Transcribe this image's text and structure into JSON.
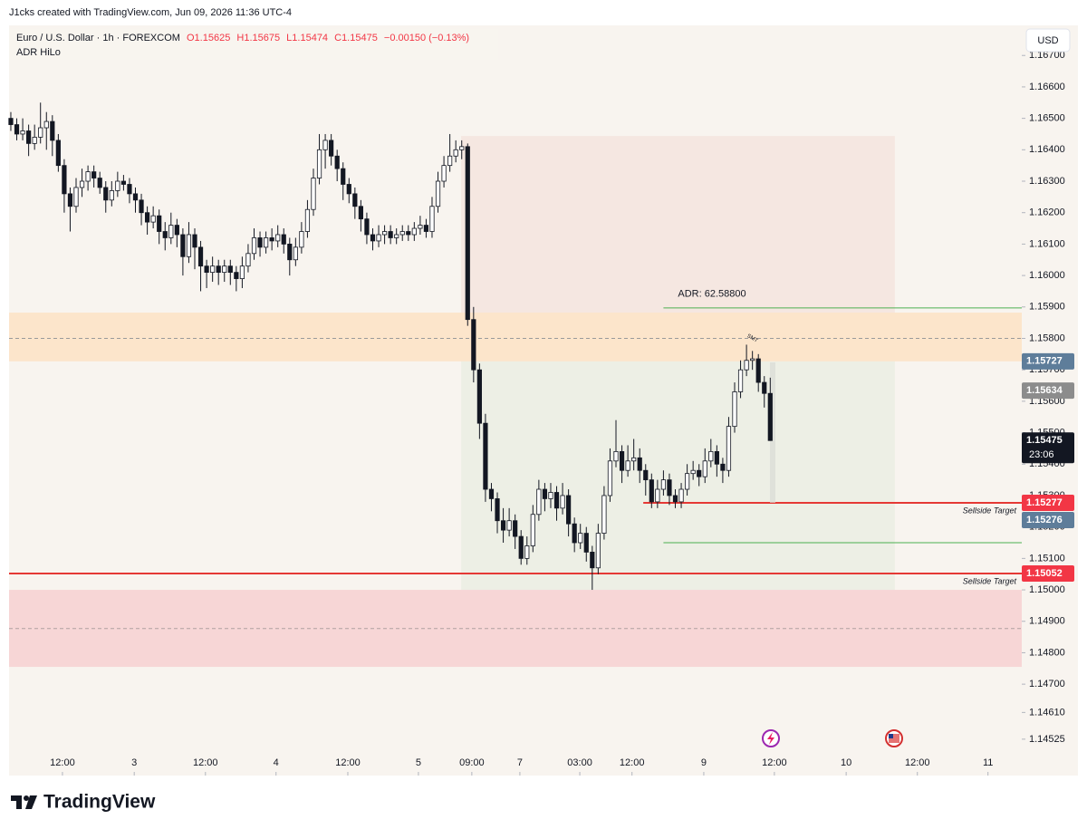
{
  "header": {
    "credit": "J1cks created with TradingView.com, Jun 09, 2026 11:36 UTC-4",
    "symbol": "Euro / U.S. Dollar · 1h · FOREXCOM",
    "open": "O1.15625",
    "high": "H1.15675",
    "low": "L1.15474",
    "close": "C1.15475",
    "change": "−0.00150 (−0.13%)",
    "indicator": "ADR HiLo",
    "currency": "USD"
  },
  "chart_data": {
    "type": "candlestick",
    "up_color": "#ffffff",
    "down_color": "#131722",
    "wick_color": "#131722",
    "ylim": [
      1.1449,
      1.1679
    ],
    "xlim": [
      -0.3,
      170.4
    ],
    "grid": false,
    "yticks": [
      {
        "value": 1.167,
        "label": "1.16700"
      },
      {
        "value": 1.166,
        "label": "1.16600"
      },
      {
        "value": 1.165,
        "label": "1.16500"
      },
      {
        "value": 1.164,
        "label": "1.16400"
      },
      {
        "value": 1.163,
        "label": "1.16300"
      },
      {
        "value": 1.162,
        "label": "1.16200"
      },
      {
        "value": 1.161,
        "label": "1.16100"
      },
      {
        "value": 1.16,
        "label": "1.16000"
      },
      {
        "value": 1.159,
        "label": "1.15900"
      },
      {
        "value": 1.158,
        "label": "1.15800"
      },
      {
        "value": 1.157,
        "label": "1.15700"
      },
      {
        "value": 1.156,
        "label": "1.15600"
      },
      {
        "value": 1.155,
        "label": "1.15500"
      },
      {
        "value": 1.154,
        "label": "1.15400"
      },
      {
        "value": 1.153,
        "label": "1.15300"
      },
      {
        "value": 1.152,
        "label": "1.15200"
      },
      {
        "value": 1.151,
        "label": "1.15100"
      },
      {
        "value": 1.15,
        "label": "1.15000"
      },
      {
        "value": 1.149,
        "label": "1.14900"
      },
      {
        "value": 1.148,
        "label": "1.14800"
      },
      {
        "value": 1.147,
        "label": "1.14700"
      },
      {
        "value": 1.1461,
        "label": "1.14610"
      },
      {
        "value": 1.14525,
        "label": "1.14525"
      }
    ],
    "xticks": [
      {
        "value": 8.7,
        "label": "12:00"
      },
      {
        "value": 20.8,
        "label": "3"
      },
      {
        "value": 32.8,
        "label": "12:00"
      },
      {
        "value": 44.7,
        "label": "4"
      },
      {
        "value": 56.8,
        "label": "12:00"
      },
      {
        "value": 68.7,
        "label": "5"
      },
      {
        "value": 77.7,
        "label": "09:00"
      },
      {
        "value": 85.8,
        "label": "7"
      },
      {
        "value": 95.9,
        "label": "03:00"
      },
      {
        "value": 104.7,
        "label": "12:00"
      },
      {
        "value": 116.8,
        "label": "9"
      },
      {
        "value": 128.7,
        "label": "12:00"
      },
      {
        "value": 140.8,
        "label": "10"
      },
      {
        "value": 152.8,
        "label": "12:00"
      },
      {
        "value": 164.7,
        "label": "11"
      }
    ],
    "zones": [
      {
        "from": 1.16444,
        "to": 1.15727,
        "start": 75.9,
        "end": 149,
        "color": "#f5e7e1"
      },
      {
        "from": 1.15727,
        "to": 1.15,
        "start": 75.9,
        "end": 149,
        "color": "#edefe5"
      },
      {
        "from": 1.15882,
        "to": 1.15727,
        "color": "#fce5cb"
      },
      {
        "from": 1.15,
        "to": 1.14755,
        "color": "#f7d6d6"
      }
    ],
    "lines": [
      {
        "price": 1.158,
        "color": "#9a9a9a",
        "dashed": true
      },
      {
        "price": 1.14877,
        "color": "#b0a0a0",
        "dashed": true
      },
      {
        "price": 1.15897,
        "color": "#4caf50",
        "start": 110,
        "label": "ADR: 62.58800"
      },
      {
        "price": 1.1515,
        "color": "#4caf50",
        "start": 110
      },
      {
        "price": 1.15277,
        "color": "#e53935",
        "start": 106.6,
        "width": 2,
        "label": "Sellside Target"
      },
      {
        "price": 1.15052,
        "color": "#e53935",
        "width": 2,
        "label": "Sellside Target"
      }
    ],
    "price_labels": [
      {
        "value": 1.15727,
        "color": "#5e7d9a"
      },
      {
        "value": 1.15634,
        "color": "#8c8c8c"
      },
      {
        "value": 1.15475,
        "color": "#131722",
        "countdown": "23:06"
      },
      {
        "value": 1.15277,
        "color": "#f23645"
      },
      {
        "value": 1.15276,
        "color": "#5e7d9a"
      },
      {
        "value": 1.15052,
        "color": "#f23645"
      }
    ],
    "annotations": [
      {
        "text": "SMT",
        "index": 125,
        "price": 1.158,
        "color": "#f23645"
      }
    ],
    "ohlc": [
      [
        1.165,
        1.1652,
        1.1646,
        1.1648
      ],
      [
        1.1648,
        1.165,
        1.1643,
        1.1645
      ],
      [
        1.1645,
        1.165,
        1.1643,
        1.1646
      ],
      [
        1.1646,
        1.1648,
        1.1638,
        1.1642
      ],
      [
        1.1642,
        1.1648,
        1.164,
        1.1644
      ],
      [
        1.1644,
        1.1655,
        1.1642,
        1.1647
      ],
      [
        1.1647,
        1.1652,
        1.164,
        1.1649
      ],
      [
        1.1649,
        1.1651,
        1.1638,
        1.1643
      ],
      [
        1.1643,
        1.1645,
        1.1633,
        1.1635
      ],
      [
        1.1635,
        1.1637,
        1.162,
        1.1626
      ],
      [
        1.1626,
        1.1628,
        1.1614,
        1.1622
      ],
      [
        1.1622,
        1.1631,
        1.162,
        1.1628
      ],
      [
        1.1628,
        1.1634,
        1.1625,
        1.163
      ],
      [
        1.163,
        1.1635,
        1.1627,
        1.1633
      ],
      [
        1.1633,
        1.1635,
        1.1628,
        1.1631
      ],
      [
        1.1631,
        1.1633,
        1.1626,
        1.1628
      ],
      [
        1.1628,
        1.163,
        1.162,
        1.1624
      ],
      [
        1.1624,
        1.163,
        1.1622,
        1.1627
      ],
      [
        1.1627,
        1.1633,
        1.1625,
        1.163
      ],
      [
        1.163,
        1.1632,
        1.1627,
        1.1629
      ],
      [
        1.1629,
        1.1631,
        1.1623,
        1.1626
      ],
      [
        1.1626,
        1.1628,
        1.162,
        1.1624
      ],
      [
        1.1624,
        1.1626,
        1.1616,
        1.162
      ],
      [
        1.162,
        1.1622,
        1.1613,
        1.1617
      ],
      [
        1.1617,
        1.1622,
        1.1615,
        1.1619
      ],
      [
        1.1619,
        1.1621,
        1.161,
        1.1614
      ],
      [
        1.1614,
        1.1617,
        1.1608,
        1.1612
      ],
      [
        1.1612,
        1.162,
        1.161,
        1.1616
      ],
      [
        1.1616,
        1.1618,
        1.1609,
        1.1613
      ],
      [
        1.1613,
        1.1615,
        1.16,
        1.1606
      ],
      [
        1.1606,
        1.1617,
        1.1604,
        1.1613
      ],
      [
        1.1613,
        1.1615,
        1.1602,
        1.1609
      ],
      [
        1.1609,
        1.1611,
        1.1595,
        1.1603
      ],
      [
        1.1603,
        1.1605,
        1.1596,
        1.1601
      ],
      [
        1.1601,
        1.1606,
        1.1598,
        1.1603
      ],
      [
        1.1603,
        1.1605,
        1.1597,
        1.1601
      ],
      [
        1.1601,
        1.1605,
        1.1598,
        1.1603
      ],
      [
        1.1603,
        1.1605,
        1.1597,
        1.1601
      ],
      [
        1.1601,
        1.1603,
        1.1595,
        1.1599
      ],
      [
        1.1599,
        1.1606,
        1.1596,
        1.1603
      ],
      [
        1.1603,
        1.161,
        1.1601,
        1.1607
      ],
      [
        1.1607,
        1.1615,
        1.1605,
        1.1612
      ],
      [
        1.1612,
        1.1614,
        1.1606,
        1.1609
      ],
      [
        1.1609,
        1.1614,
        1.1607,
        1.1612
      ],
      [
        1.1612,
        1.1615,
        1.1608,
        1.1611
      ],
      [
        1.1611,
        1.1616,
        1.1609,
        1.1613
      ],
      [
        1.1613,
        1.1615,
        1.1607,
        1.161
      ],
      [
        1.161,
        1.1612,
        1.16,
        1.1605
      ],
      [
        1.1605,
        1.1612,
        1.1603,
        1.1609
      ],
      [
        1.1609,
        1.1617,
        1.1607,
        1.1614
      ],
      [
        1.1614,
        1.1624,
        1.1612,
        1.1621
      ],
      [
        1.1621,
        1.1634,
        1.1619,
        1.1631
      ],
      [
        1.1631,
        1.1645,
        1.1629,
        1.164
      ],
      [
        1.164,
        1.1645,
        1.1634,
        1.1643
      ],
      [
        1.1643,
        1.1645,
        1.1635,
        1.1638
      ],
      [
        1.1638,
        1.164,
        1.163,
        1.1634
      ],
      [
        1.1634,
        1.1636,
        1.1624,
        1.1629
      ],
      [
        1.1629,
        1.1631,
        1.1623,
        1.1626
      ],
      [
        1.1626,
        1.1628,
        1.1618,
        1.1622
      ],
      [
        1.1622,
        1.1624,
        1.1614,
        1.1618
      ],
      [
        1.1618,
        1.162,
        1.161,
        1.1613
      ],
      [
        1.1613,
        1.1615,
        1.1608,
        1.1611
      ],
      [
        1.1611,
        1.1616,
        1.1609,
        1.1613
      ],
      [
        1.1613,
        1.1616,
        1.161,
        1.1614
      ],
      [
        1.1614,
        1.1616,
        1.161,
        1.1612
      ],
      [
        1.1612,
        1.1615,
        1.161,
        1.1613
      ],
      [
        1.1613,
        1.1616,
        1.1611,
        1.1614
      ],
      [
        1.1614,
        1.1616,
        1.1611,
        1.1613
      ],
      [
        1.1613,
        1.1617,
        1.1611,
        1.1615
      ],
      [
        1.1615,
        1.1619,
        1.1613,
        1.1616
      ],
      [
        1.1616,
        1.1618,
        1.1612,
        1.1614
      ],
      [
        1.1614,
        1.1625,
        1.1612,
        1.1622
      ],
      [
        1.1622,
        1.1633,
        1.162,
        1.163
      ],
      [
        1.163,
        1.1638,
        1.1628,
        1.1635
      ],
      [
        1.1635,
        1.1645,
        1.1633,
        1.1638
      ],
      [
        1.1638,
        1.1643,
        1.1636,
        1.164
      ],
      [
        1.164,
        1.1643,
        1.1637,
        1.1641
      ],
      [
        1.1641,
        1.1642,
        1.1584,
        1.1586
      ],
      [
        1.1586,
        1.159,
        1.1566,
        1.157
      ],
      [
        1.157,
        1.1572,
        1.1548,
        1.1553
      ],
      [
        1.1553,
        1.1556,
        1.1528,
        1.1532
      ],
      [
        1.1532,
        1.1534,
        1.1525,
        1.1529
      ],
      [
        1.1529,
        1.1531,
        1.1518,
        1.1522
      ],
      [
        1.1522,
        1.1526,
        1.1515,
        1.1519
      ],
      [
        1.1519,
        1.1526,
        1.1517,
        1.1522
      ],
      [
        1.1522,
        1.1524,
        1.1513,
        1.1517
      ],
      [
        1.1517,
        1.1519,
        1.1508,
        1.151
      ],
      [
        1.151,
        1.1517,
        1.1508,
        1.1514
      ],
      [
        1.1514,
        1.1527,
        1.1512,
        1.1524
      ],
      [
        1.1524,
        1.1535,
        1.1522,
        1.1532
      ],
      [
        1.1532,
        1.1534,
        1.1525,
        1.1529
      ],
      [
        1.1529,
        1.1534,
        1.1526,
        1.1531
      ],
      [
        1.1531,
        1.1533,
        1.1522,
        1.1526
      ],
      [
        1.1526,
        1.1534,
        1.1524,
        1.153
      ],
      [
        1.153,
        1.1532,
        1.1517,
        1.1521
      ],
      [
        1.1521,
        1.1523,
        1.1512,
        1.1515
      ],
      [
        1.1515,
        1.1521,
        1.1513,
        1.1518
      ],
      [
        1.1518,
        1.152,
        1.1509,
        1.1512
      ],
      [
        1.1512,
        1.1514,
        1.15,
        1.1507
      ],
      [
        1.1507,
        1.1521,
        1.1505,
        1.1518
      ],
      [
        1.1518,
        1.1533,
        1.1516,
        1.153
      ],
      [
        1.153,
        1.1545,
        1.1528,
        1.1541
      ],
      [
        1.1541,
        1.1554,
        1.1539,
        1.1544
      ],
      [
        1.1544,
        1.1546,
        1.1534,
        1.1538
      ],
      [
        1.1538,
        1.1546,
        1.1536,
        1.1541
      ],
      [
        1.1541,
        1.1548,
        1.1538,
        1.1542
      ],
      [
        1.1542,
        1.1545,
        1.1534,
        1.1538
      ],
      [
        1.1538,
        1.154,
        1.153,
        1.1535
      ],
      [
        1.1535,
        1.1537,
        1.1526,
        1.1528
      ],
      [
        1.1528,
        1.1535,
        1.1526,
        1.1532
      ],
      [
        1.1532,
        1.1538,
        1.153,
        1.1535
      ],
      [
        1.1535,
        1.1537,
        1.1527,
        1.153
      ],
      [
        1.153,
        1.1532,
        1.1526,
        1.1528
      ],
      [
        1.1528,
        1.1534,
        1.1526,
        1.1532
      ],
      [
        1.1532,
        1.154,
        1.153,
        1.1537
      ],
      [
        1.1537,
        1.1541,
        1.1535,
        1.1538
      ],
      [
        1.1538,
        1.154,
        1.1533,
        1.1536
      ],
      [
        1.1536,
        1.1545,
        1.1534,
        1.1541
      ],
      [
        1.1541,
        1.1548,
        1.1539,
        1.1544
      ],
      [
        1.1544,
        1.1546,
        1.1536,
        1.154
      ],
      [
        1.154,
        1.1542,
        1.1534,
        1.1538
      ],
      [
        1.1538,
        1.1555,
        1.1536,
        1.1552
      ],
      [
        1.1552,
        1.1566,
        1.155,
        1.1563
      ],
      [
        1.1563,
        1.1573,
        1.1561,
        1.157
      ],
      [
        1.157,
        1.1578,
        1.1568,
        1.1573
      ],
      [
        1.1573,
        1.1576,
        1.157,
        1.15735
      ],
      [
        1.15735,
        1.1575,
        1.1563,
        1.1566
      ],
      [
        1.1566,
        1.1568,
        1.1558,
        1.15625
      ],
      [
        1.15625,
        1.15675,
        1.15474,
        1.15475
      ]
    ]
  },
  "footer": "TradingView"
}
